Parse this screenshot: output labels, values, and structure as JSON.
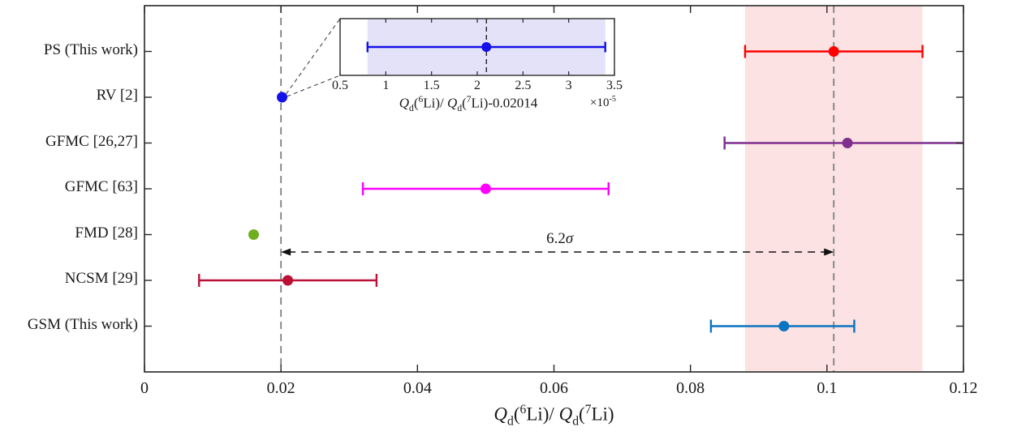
{
  "chart_data": {
    "type": "scatter",
    "subtype": "horizontal-error-bar-comparison",
    "title": "",
    "xlabel": "Q_d(6Li)/ Q_d(7Li)",
    "xlabel_rich": "*Q*_{d}(^{6}Li)/ *Q*_{d}(^{7}Li)",
    "xlim": [
      0,
      0.12
    ],
    "xticks": [
      0,
      0.02,
      0.04,
      0.06,
      0.08,
      0.1,
      0.12
    ],
    "xtick_labels": [
      "0",
      "0.02",
      "0.04",
      "0.06",
      "0.08",
      "0.1",
      "0.12"
    ],
    "grid": false,
    "legend": "none",
    "rows": [
      {
        "label": "PS (This work)",
        "value": 0.101,
        "err_lo": 0.088,
        "err_hi": 0.114,
        "color": "#fe0000",
        "caps": "both"
      },
      {
        "label": "RV [2]",
        "value": 0.020161,
        "err_lo": 0.020148,
        "err_hi": 0.020174,
        "color": "#1412e8",
        "caps": "none"
      },
      {
        "label": "GFMC [26,27]",
        "value": 0.103,
        "err_lo": 0.085,
        "err_hi": 0.12,
        "color": "#7e2f8e",
        "caps": "left",
        "clipped_right": true
      },
      {
        "label": "GFMC [63]",
        "value": 0.05,
        "err_lo": 0.032,
        "err_hi": 0.068,
        "color": "#ff00ff",
        "caps": "both"
      },
      {
        "label": "FMD [28]",
        "value": 0.016,
        "err_lo": null,
        "err_hi": null,
        "color": "#6fae1e",
        "caps": "none"
      },
      {
        "label": "NCSM [29]",
        "value": 0.021,
        "err_lo": 0.008,
        "err_hi": 0.034,
        "color": "#bb1137",
        "caps": "both"
      },
      {
        "label": "GSM (This work)",
        "value": 0.0937,
        "err_lo": 0.083,
        "err_hi": 0.104,
        "color": "#0b74c0",
        "caps": "both"
      }
    ],
    "reference_lines": [
      {
        "x": 0.02,
        "style": "dashed",
        "color": "#7f7f7f"
      },
      {
        "x": 0.101,
        "style": "dashed",
        "color": "#7f7f7f"
      }
    ],
    "shaded_band": {
      "x_from": 0.088,
      "x_to": 0.114,
      "color": "#fce2e2"
    },
    "annotation": {
      "text": "6.2σ",
      "text_rich": "6.2*σ*",
      "arrow_x_from": 0.02,
      "arrow_x_to": 0.101,
      "style": "double-headed-dashed-arrow"
    },
    "inset": {
      "xlabel": "Q_d(6Li)/ Q_d(7Li)-0.02014",
      "xlabel_rich": "*Q*_{d}(^{6}Li)/ *Q*_{d}(^{7}Li)-0.02014",
      "scale_label": "×10-5",
      "scale_label_rich": "×10^{-5}",
      "xlim": [
        0.5,
        3.5
      ],
      "xticks": [
        0.5,
        1,
        1.5,
        2,
        2.5,
        3,
        3.5
      ],
      "xtick_labels": [
        "0.5",
        "1",
        "1.5",
        "2",
        "2.5",
        "3",
        "3.5"
      ],
      "point": {
        "value": 2.1,
        "err_lo": 0.8,
        "err_hi": 3.4,
        "color": "#1412e8"
      },
      "shaded_band": {
        "x_from": 0.8,
        "x_to": 3.4,
        "color": "#e3e2f8"
      },
      "reference_line": {
        "x": 2.1,
        "style": "dashed",
        "color": "#111111"
      },
      "zoom_source_row": "RV [2]"
    }
  }
}
